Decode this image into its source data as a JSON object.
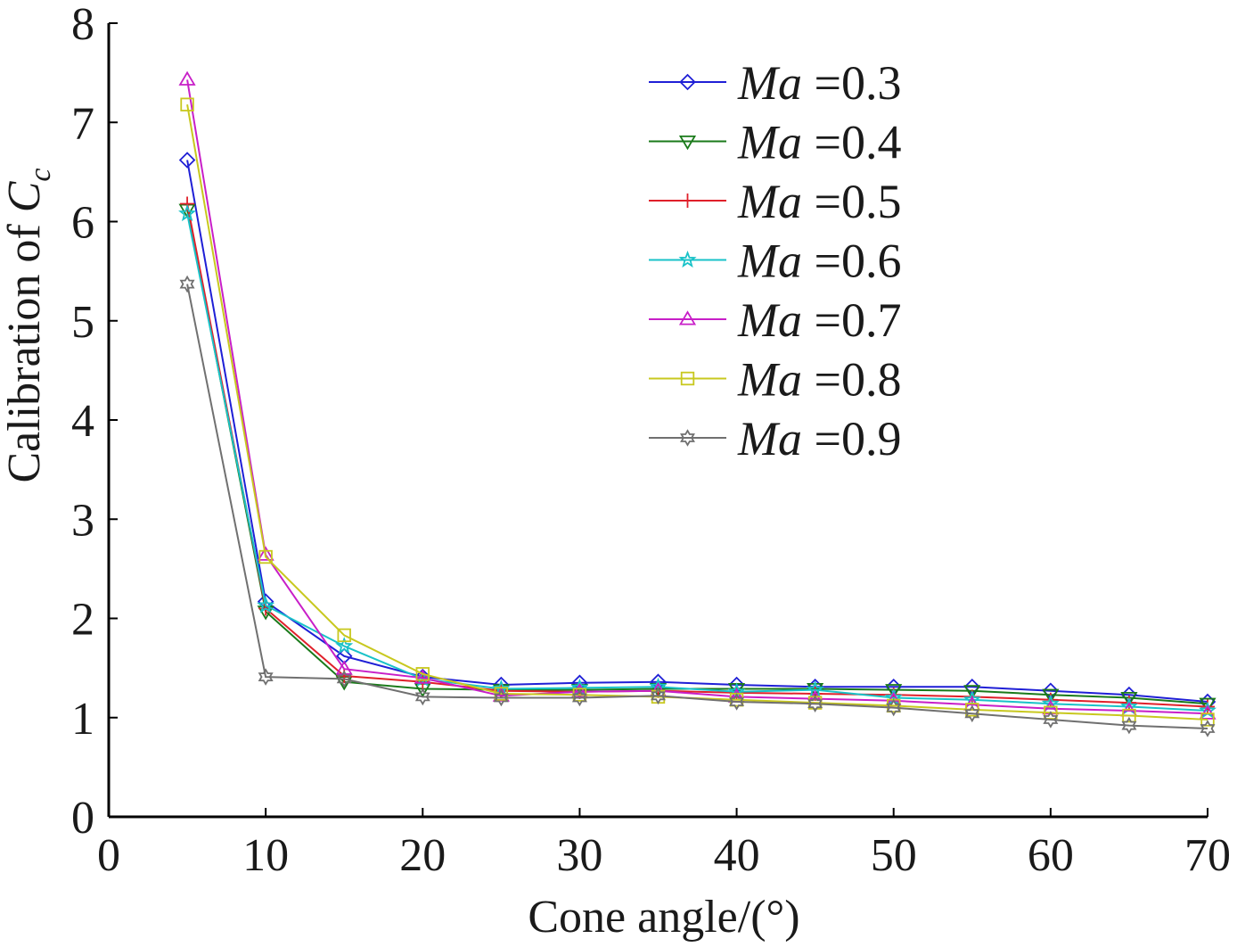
{
  "chart_data": {
    "type": "line",
    "title": "",
    "xlabel": "Cone angle/(°)",
    "ylabel_prefix": "Calibration of ",
    "ylabel_symbol": "C",
    "ylabel_subscript": "c",
    "xlim": [
      0,
      70
    ],
    "ylim": [
      0,
      8
    ],
    "xticks": [
      0,
      10,
      20,
      30,
      40,
      50,
      60,
      70
    ],
    "yticks": [
      0,
      1,
      2,
      3,
      4,
      5,
      6,
      7,
      8
    ],
    "legend_position": "top-right",
    "x": [
      5,
      10,
      15,
      20,
      25,
      30,
      35,
      40,
      45,
      50,
      55,
      60,
      65,
      70
    ],
    "series": [
      {
        "name_italic": "Ma",
        "name_rest": " =0.3",
        "color": "#1f1fd6",
        "marker": "diamond",
        "values": [
          6.62,
          2.17,
          1.62,
          1.41,
          1.33,
          1.35,
          1.36,
          1.33,
          1.31,
          1.31,
          1.31,
          1.27,
          1.23,
          1.16
        ]
      },
      {
        "name_italic": "Ma",
        "name_rest": " =0.4",
        "color": "#1a7a1a",
        "marker": "triangle-down",
        "values": [
          6.12,
          2.07,
          1.36,
          1.29,
          1.28,
          1.28,
          1.29,
          1.29,
          1.29,
          1.28,
          1.27,
          1.23,
          1.2,
          1.14
        ]
      },
      {
        "name_italic": "Ma",
        "name_rest": " =0.5",
        "color": "#e0202a",
        "marker": "plus",
        "values": [
          6.18,
          2.1,
          1.42,
          1.36,
          1.27,
          1.26,
          1.27,
          1.25,
          1.24,
          1.23,
          1.21,
          1.18,
          1.15,
          1.11
        ]
      },
      {
        "name_italic": "Ma",
        "name_rest": " =0.6",
        "color": "#19c2c8",
        "marker": "star",
        "values": [
          6.08,
          2.13,
          1.72,
          1.39,
          1.29,
          1.3,
          1.31,
          1.26,
          1.28,
          1.2,
          1.18,
          1.14,
          1.11,
          1.07
        ]
      },
      {
        "name_italic": "Ma",
        "name_rest": " =0.7",
        "color": "#c81fc8",
        "marker": "triangle-up",
        "values": [
          7.43,
          2.64,
          1.49,
          1.4,
          1.22,
          1.26,
          1.27,
          1.21,
          1.19,
          1.17,
          1.13,
          1.09,
          1.07,
          1.04
        ]
      },
      {
        "name_italic": "Ma",
        "name_rest": " =0.8",
        "color": "#c8c81f",
        "marker": "square",
        "values": [
          7.18,
          2.62,
          1.83,
          1.44,
          1.24,
          1.23,
          1.21,
          1.18,
          1.15,
          1.12,
          1.08,
          1.05,
          1.02,
          0.98
        ]
      },
      {
        "name_italic": "Ma",
        "name_rest": " =0.9",
        "color": "#707070",
        "marker": "hexagram",
        "values": [
          5.37,
          1.41,
          1.39,
          1.21,
          1.2,
          1.2,
          1.22,
          1.16,
          1.14,
          1.1,
          1.04,
          0.98,
          0.92,
          0.89
        ]
      }
    ]
  }
}
